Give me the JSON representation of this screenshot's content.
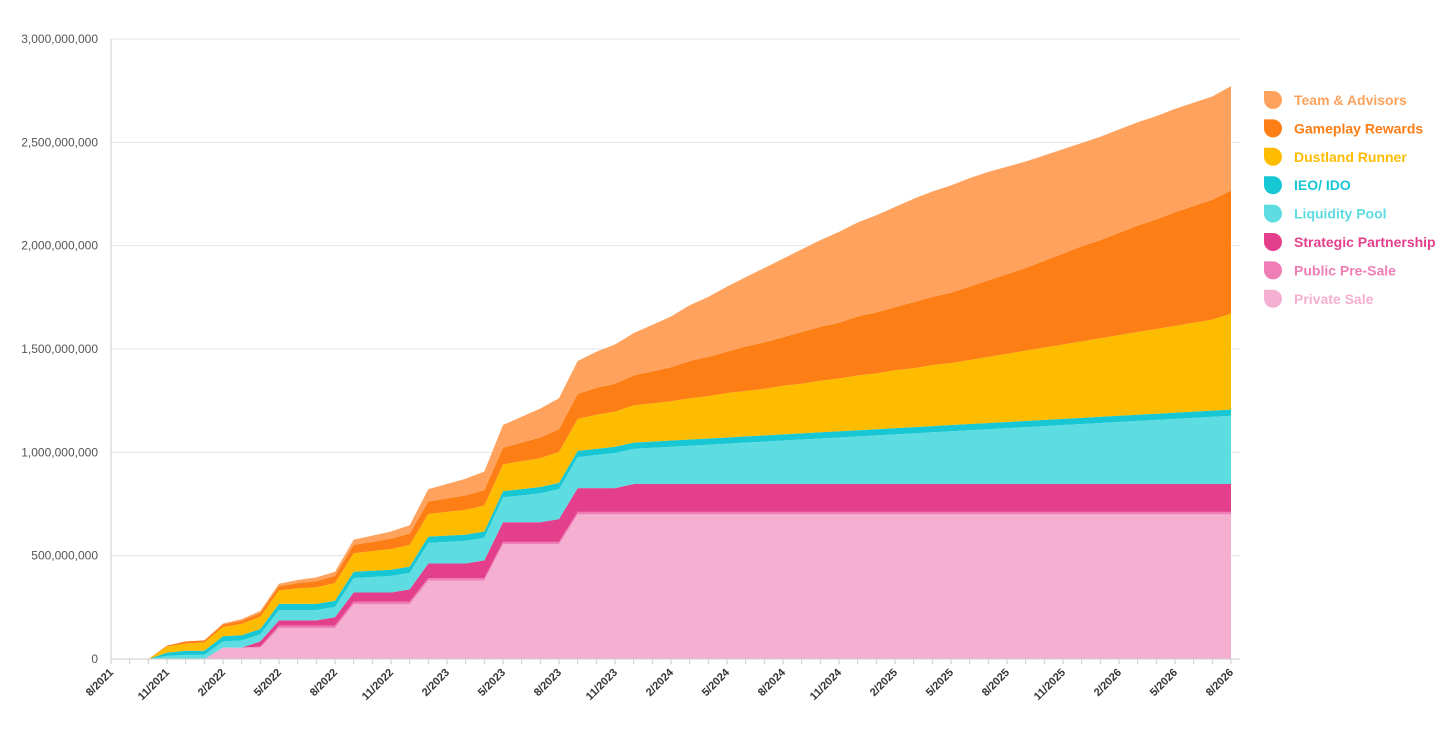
{
  "chart_data": {
    "type": "area",
    "stacked": true,
    "title": "",
    "xlabel": "",
    "ylabel": "",
    "ylim": [
      0,
      3000000000
    ],
    "yticks": [
      0,
      500000000,
      1000000000,
      1500000000,
      2000000000,
      2500000000,
      3000000000
    ],
    "ytick_labels": [
      "0",
      "500,000,000",
      "1,000,000,000",
      "1,500,000,000",
      "2,000,000,000",
      "2,500,000,000",
      "3,000,000,000"
    ],
    "xtick_labels": [
      "8/2021",
      "11/2021",
      "2/2022",
      "5/2022",
      "8/2022",
      "11/2022",
      "2/2023",
      "5/2023",
      "8/2023",
      "11/2023",
      "2/2024",
      "5/2024",
      "8/2024",
      "11/2024",
      "2/2025",
      "5/2025",
      "8/2025",
      "11/2025",
      "2/2026",
      "5/2026",
      "8/2026"
    ],
    "grid": true,
    "legend_position": "right",
    "x": [
      "8/2021",
      "9/2021",
      "10/2021",
      "11/2021",
      "12/2021",
      "1/2022",
      "2/2022",
      "3/2022",
      "4/2022",
      "5/2022",
      "6/2022",
      "7/2022",
      "8/2022",
      "9/2022",
      "10/2022",
      "11/2022",
      "12/2022",
      "1/2023",
      "2/2023",
      "3/2023",
      "4/2023",
      "5/2023",
      "6/2023",
      "7/2023",
      "8/2023",
      "9/2023",
      "10/2023",
      "11/2023",
      "12/2023",
      "1/2024",
      "2/2024",
      "3/2024",
      "4/2024",
      "5/2024",
      "6/2024",
      "7/2024",
      "8/2024",
      "9/2024",
      "10/2024",
      "11/2024",
      "12/2024",
      "1/2025",
      "2/2025",
      "3/2025",
      "4/2025",
      "5/2025",
      "6/2025",
      "7/2025",
      "8/2025",
      "9/2025",
      "10/2025",
      "11/2025",
      "12/2025",
      "1/2026",
      "2/2026",
      "3/2026",
      "4/2026",
      "5/2026",
      "6/2026",
      "7/2026",
      "8/2026"
    ],
    "series": [
      {
        "name": "Private Sale",
        "color": "#f5afd0",
        "values": [
          0,
          0,
          0,
          0,
          0,
          0,
          55000000,
          55000000,
          55000000,
          150000000,
          150000000,
          150000000,
          150000000,
          265000000,
          265000000,
          265000000,
          265000000,
          380000000,
          380000000,
          380000000,
          380000000,
          555000000,
          555000000,
          555000000,
          555000000,
          700000000,
          700000000,
          700000000,
          700000000,
          700000000,
          700000000,
          700000000,
          700000000,
          700000000,
          700000000,
          700000000,
          700000000,
          700000000,
          700000000,
          700000000,
          700000000,
          700000000,
          700000000,
          700000000,
          700000000,
          700000000,
          700000000,
          700000000,
          700000000,
          700000000,
          700000000,
          700000000,
          700000000,
          700000000,
          700000000,
          700000000,
          700000000,
          700000000,
          700000000,
          700000000,
          700000000
        ]
      },
      {
        "name": "Public Pre-Sale",
        "color": "#ee7eb5",
        "values": [
          0,
          0,
          0,
          0,
          0,
          0,
          0,
          0,
          5000000,
          12000000,
          12000000,
          12000000,
          12000000,
          12000000,
          12000000,
          12000000,
          12000000,
          12000000,
          12000000,
          12000000,
          12000000,
          12000000,
          12000000,
          12000000,
          12000000,
          12000000,
          12000000,
          12000000,
          12000000,
          12000000,
          12000000,
          12000000,
          12000000,
          12000000,
          12000000,
          12000000,
          12000000,
          12000000,
          12000000,
          12000000,
          12000000,
          12000000,
          12000000,
          12000000,
          12000000,
          12000000,
          12000000,
          12000000,
          12000000,
          12000000,
          12000000,
          12000000,
          12000000,
          12000000,
          12000000,
          12000000,
          12000000,
          12000000,
          12000000,
          12000000,
          12000000
        ]
      },
      {
        "name": "Strategic Partnership",
        "color": "#e43f8c",
        "values": [
          0,
          0,
          0,
          0,
          0,
          0,
          0,
          0,
          25000000,
          25000000,
          25000000,
          25000000,
          40000000,
          45000000,
          45000000,
          45000000,
          60000000,
          70000000,
          70000000,
          70000000,
          85000000,
          95000000,
          95000000,
          95000000,
          110000000,
          115000000,
          115000000,
          115000000,
          135000000,
          135000000,
          135000000,
          135000000,
          135000000,
          135000000,
          135000000,
          135000000,
          135000000,
          135000000,
          135000000,
          135000000,
          135000000,
          135000000,
          135000000,
          135000000,
          135000000,
          135000000,
          135000000,
          135000000,
          135000000,
          135000000,
          135000000,
          135000000,
          135000000,
          135000000,
          135000000,
          135000000,
          135000000,
          135000000,
          135000000,
          135000000,
          135000000
        ]
      },
      {
        "name": "Liquidity Pool",
        "color": "#5ddde2",
        "values": [
          0,
          0,
          0,
          15000000,
          20000000,
          20000000,
          30000000,
          35000000,
          35000000,
          50000000,
          50000000,
          50000000,
          50000000,
          70000000,
          75000000,
          80000000,
          80000000,
          100000000,
          105000000,
          110000000,
          110000000,
          120000000,
          130000000,
          140000000,
          145000000,
          150000000,
          160000000,
          170000000,
          170000000,
          175000000,
          180000000,
          185000000,
          190000000,
          195000000,
          200000000,
          205000000,
          210000000,
          215000000,
          220000000,
          225000000,
          230000000,
          235000000,
          240000000,
          245000000,
          250000000,
          255000000,
          260000000,
          265000000,
          270000000,
          275000000,
          280000000,
          285000000,
          290000000,
          295000000,
          300000000,
          305000000,
          310000000,
          315000000,
          320000000,
          325000000,
          330000000
        ]
      },
      {
        "name": "IEO/ IDO",
        "color": "#17c7d3",
        "values": [
          0,
          0,
          0,
          15000000,
          20000000,
          20000000,
          25000000,
          25000000,
          25000000,
          30000000,
          30000000,
          30000000,
          30000000,
          30000000,
          30000000,
          30000000,
          30000000,
          30000000,
          30000000,
          30000000,
          30000000,
          30000000,
          30000000,
          30000000,
          30000000,
          30000000,
          30000000,
          30000000,
          30000000,
          30000000,
          30000000,
          30000000,
          30000000,
          30000000,
          30000000,
          30000000,
          30000000,
          30000000,
          30000000,
          30000000,
          30000000,
          30000000,
          30000000,
          30000000,
          30000000,
          30000000,
          30000000,
          30000000,
          30000000,
          30000000,
          30000000,
          30000000,
          30000000,
          30000000,
          30000000,
          30000000,
          30000000,
          30000000,
          30000000,
          30000000,
          30000000
        ]
      },
      {
        "name": "Dustland Runner",
        "color": "#fdbc00",
        "values": [
          0,
          0,
          0,
          30000000,
          35000000,
          40000000,
          45000000,
          55000000,
          60000000,
          65000000,
          75000000,
          80000000,
          85000000,
          90000000,
          95000000,
          100000000,
          105000000,
          110000000,
          115000000,
          120000000,
          125000000,
          130000000,
          135000000,
          140000000,
          150000000,
          155000000,
          165000000,
          170000000,
          180000000,
          185000000,
          190000000,
          200000000,
          205000000,
          215000000,
          220000000,
          225000000,
          235000000,
          240000000,
          250000000,
          255000000,
          265000000,
          270000000,
          280000000,
          285000000,
          295000000,
          300000000,
          310000000,
          320000000,
          330000000,
          340000000,
          350000000,
          360000000,
          370000000,
          380000000,
          390000000,
          400000000,
          410000000,
          420000000,
          430000000,
          440000000,
          465000000
        ]
      },
      {
        "name": "Gameplay Rewards",
        "color": "#fd7e14",
        "values": [
          0,
          0,
          0,
          5000000,
          10000000,
          10000000,
          12000000,
          15000000,
          18000000,
          20000000,
          25000000,
          30000000,
          35000000,
          40000000,
          45000000,
          50000000,
          55000000,
          60000000,
          65000000,
          70000000,
          75000000,
          80000000,
          90000000,
          100000000,
          110000000,
          120000000,
          130000000,
          135000000,
          145000000,
          155000000,
          165000000,
          180000000,
          190000000,
          200000000,
          215000000,
          225000000,
          235000000,
          250000000,
          260000000,
          270000000,
          285000000,
          295000000,
          305000000,
          320000000,
          330000000,
          340000000,
          355000000,
          370000000,
          385000000,
          400000000,
          420000000,
          440000000,
          460000000,
          475000000,
          495000000,
          515000000,
          530000000,
          550000000,
          565000000,
          580000000,
          595000000
        ]
      },
      {
        "name": "Team & Advisors",
        "color": "#fea25d",
        "values": [
          0,
          0,
          0,
          0,
          0,
          0,
          5000000,
          8000000,
          10000000,
          12000000,
          15000000,
          18000000,
          20000000,
          25000000,
          30000000,
          35000000,
          40000000,
          60000000,
          70000000,
          80000000,
          90000000,
          110000000,
          125000000,
          140000000,
          150000000,
          160000000,
          175000000,
          190000000,
          205000000,
          225000000,
          245000000,
          270000000,
          290000000,
          315000000,
          335000000,
          360000000,
          380000000,
          400000000,
          420000000,
          440000000,
          455000000,
          470000000,
          485000000,
          500000000,
          510000000,
          520000000,
          525000000,
          525000000,
          520000000,
          515000000,
          510000000,
          505000000,
          500000000,
          500000000,
          500000000,
          500000000,
          500000000,
          500000000,
          500000000,
          500000000,
          505000000
        ]
      }
    ]
  }
}
